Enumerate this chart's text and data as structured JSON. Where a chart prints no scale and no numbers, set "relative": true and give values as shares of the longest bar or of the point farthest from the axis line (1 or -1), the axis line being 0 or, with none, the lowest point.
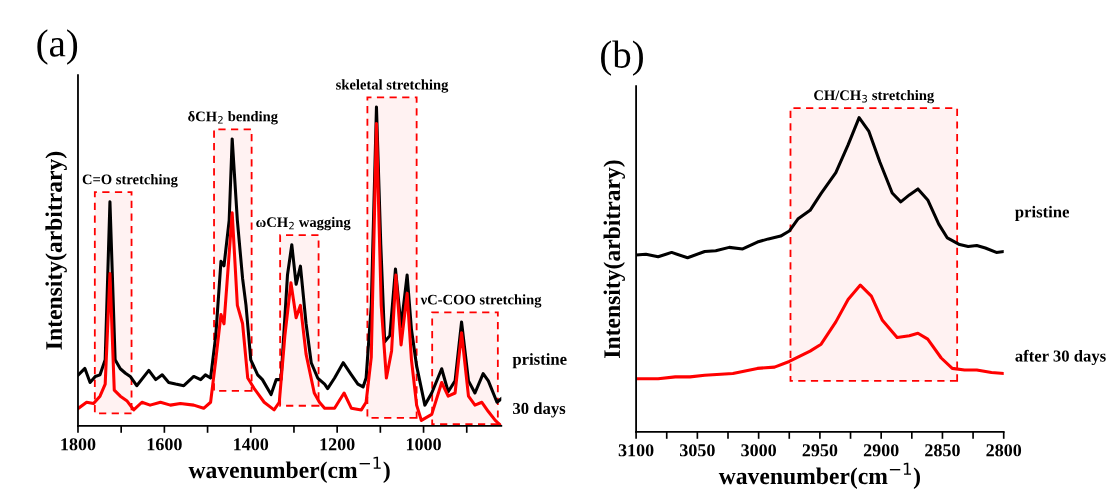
{
  "chart_data": [
    {
      "type": "line",
      "title": "(a)",
      "xlabel": "wavenumber(cm$^{−1}$)",
      "ylabel": "Intensity(arbitrary)",
      "relative": true,
      "legend": false,
      "line_style": "solid",
      "marker": "none",
      "xlim": [
        1800,
        820
      ],
      "xticks": [
        1800,
        {
          "value": 1700,
          "label": null
        },
        1600,
        {
          "value": 1500,
          "label": null
        },
        1400,
        {
          "value": 1300,
          "label": null
        },
        1200,
        {
          "value": 1100,
          "label": null
        },
        1000,
        {
          "value": 900,
          "label": null
        }
      ],
      "bands": [
        {
          "axis": "x",
          "from": 1761,
          "to": 1676,
          "label": "C=O stretching",
          "color": "#ff0000"
        },
        {
          "axis": "x",
          "from": 1485,
          "to": 1398,
          "label": "δCH$_{2}$ bending",
          "color": "#ff0000"
        },
        {
          "axis": "x",
          "from": 1332,
          "to": 1243,
          "label": "ωCH$_{2}$ wagging",
          "color": "#ff0000"
        },
        {
          "axis": "x",
          "from": 1130,
          "to": 1016,
          "label": "skeletal stretching",
          "color": "#ff0000"
        },
        {
          "axis": "x",
          "from": 980,
          "to": 828,
          "label": "νC-COO stretching",
          "color": "#ff0000"
        }
      ],
      "series": [
        {
          "name": "pristine",
          "color": "#000000",
          "x": [
            1799,
            1784,
            1772,
            1760,
            1749,
            1737,
            1726,
            1714,
            1702,
            1690,
            1679,
            1664,
            1636,
            1620,
            1605,
            1590,
            1574,
            1555,
            1532,
            1516,
            1505,
            1493,
            1481,
            1469,
            1462,
            1450,
            1443,
            1431,
            1419,
            1411,
            1400,
            1384,
            1373,
            1353,
            1341,
            1330,
            1315,
            1305,
            1295,
            1285,
            1272,
            1260,
            1245,
            1229,
            1222,
            1206,
            1186,
            1167,
            1152,
            1140,
            1133,
            1121,
            1109,
            1099,
            1090,
            1078,
            1065,
            1052,
            1038,
            1028,
            1016,
            997,
            981,
            958,
            943,
            927,
            912,
            896,
            881,
            862,
            850,
            830,
            820
          ],
          "values": [
            0.16,
            0.18,
            0.136,
            0.155,
            0.16,
            0.207,
            0.703,
            0.207,
            0.179,
            0.165,
            0.155,
            0.126,
            0.174,
            0.145,
            0.16,
            0.136,
            0.131,
            0.126,
            0.155,
            0.145,
            0.16,
            0.15,
            0.283,
            0.516,
            0.502,
            0.644,
            0.9,
            0.644,
            0.463,
            0.378,
            0.207,
            0.16,
            0.145,
            0.098,
            0.145,
            0.145,
            0.473,
            0.568,
            0.444,
            0.501,
            0.321,
            0.198,
            0.15,
            0.131,
            0.117,
            0.15,
            0.198,
            0.16,
            0.131,
            0.122,
            0.15,
            0.378,
            1.0,
            0.568,
            0.264,
            0.283,
            0.492,
            0.311,
            0.473,
            0.302,
            0.188,
            0.065,
            0.103,
            0.179,
            0.107,
            0.141,
            0.326,
            0.141,
            0.103,
            0.164,
            0.141,
            0.074,
            0.085
          ]
        },
        {
          "name": "30 days",
          "color": "#ff0000",
          "x": [
            1799,
            1780,
            1764,
            1749,
            1737,
            1726,
            1716,
            1702,
            1687,
            1671,
            1652,
            1633,
            1609,
            1586,
            1563,
            1532,
            1509,
            1493,
            1481,
            1469,
            1462,
            1443,
            1431,
            1419,
            1407,
            1392,
            1369,
            1346,
            1334,
            1321,
            1307,
            1295,
            1285,
            1272,
            1253,
            1241,
            1229,
            1206,
            1184,
            1167,
            1144,
            1133,
            1121,
            1109,
            1098,
            1086,
            1074,
            1064,
            1052,
            1038,
            1028,
            1016,
            1005,
            981,
            958,
            943,
            927,
            912,
            896,
            881,
            865,
            850,
            834,
            820
          ],
          "values": [
            0.055,
            0.074,
            0.07,
            0.093,
            0.131,
            0.478,
            0.112,
            0.093,
            0.079,
            0.05,
            0.074,
            0.065,
            0.074,
            0.065,
            0.07,
            0.065,
            0.055,
            0.074,
            0.207,
            0.349,
            0.32,
            0.668,
            0.378,
            0.321,
            0.15,
            0.117,
            0.074,
            0.05,
            0.074,
            0.283,
            0.449,
            0.339,
            0.378,
            0.225,
            0.103,
            0.074,
            0.055,
            0.055,
            0.103,
            0.055,
            0.05,
            0.074,
            0.216,
            0.948,
            0.378,
            0.15,
            0.235,
            0.473,
            0.254,
            0.416,
            0.207,
            0.065,
            0.017,
            0.036,
            0.136,
            0.093,
            0.103,
            0.292,
            0.093,
            0.065,
            0.074,
            0.045,
            0.017,
            0.0
          ]
        }
      ]
    },
    {
      "type": "line",
      "title": "(b)",
      "xlabel": "wavenumber(cm$^{−1}$)",
      "ylabel": "Intensity(arbitrary)",
      "relative": true,
      "legend": false,
      "line_style": "solid",
      "marker": "none",
      "xlim": [
        3100,
        2800
      ],
      "xticks": [
        3100,
        {
          "value": 3075,
          "label": null
        },
        3050,
        {
          "value": 3025,
          "label": null
        },
        3000,
        {
          "value": 2975,
          "label": null
        },
        2950,
        {
          "value": 2925,
          "label": null
        },
        2900,
        {
          "value": 2875,
          "label": null
        },
        2850,
        {
          "value": 2825,
          "label": null
        },
        2800
      ],
      "bands": [
        {
          "axis": "x",
          "from": 2974,
          "to": 2838,
          "label": "CH/CH$_{3}$ stretching",
          "color": "#ff0000"
        }
      ],
      "series": [
        {
          "name": "pristine",
          "color": "#000000",
          "x": [
            3100,
            3092,
            3082,
            3071,
            3058,
            3044,
            3035,
            3024,
            3013,
            3001,
            2992,
            2982,
            2975,
            2968,
            2958,
            2949,
            2937,
            2927,
            2918,
            2910,
            2901,
            2891,
            2884,
            2877,
            2870,
            2862,
            2853,
            2846,
            2836,
            2829,
            2822,
            2815,
            2806,
            2800
          ],
          "values": [
            0.563,
            0.565,
            0.557,
            0.571,
            0.554,
            0.574,
            0.576,
            0.587,
            0.582,
            0.604,
            0.614,
            0.623,
            0.639,
            0.677,
            0.705,
            0.759,
            0.825,
            0.913,
            1.0,
            0.956,
            0.858,
            0.76,
            0.732,
            0.754,
            0.773,
            0.738,
            0.661,
            0.617,
            0.596,
            0.59,
            0.593,
            0.585,
            0.571,
            0.574
          ]
        },
        {
          "name": "after 30 days",
          "color": "#ff0000",
          "x": [
            3100,
            3082,
            3068,
            3056,
            3044,
            3021,
            3001,
            2987,
            2975,
            2958,
            2949,
            2937,
            2927,
            2917,
            2908,
            2899,
            2887,
            2877,
            2870,
            2862,
            2851,
            2842,
            2832,
            2822,
            2810,
            2800
          ],
          "values": [
            0.169,
            0.169,
            0.175,
            0.175,
            0.18,
            0.186,
            0.202,
            0.206,
            0.224,
            0.257,
            0.279,
            0.35,
            0.421,
            0.467,
            0.432,
            0.355,
            0.3,
            0.306,
            0.314,
            0.295,
            0.235,
            0.202,
            0.197,
            0.197,
            0.189,
            0.186
          ]
        }
      ]
    }
  ]
}
